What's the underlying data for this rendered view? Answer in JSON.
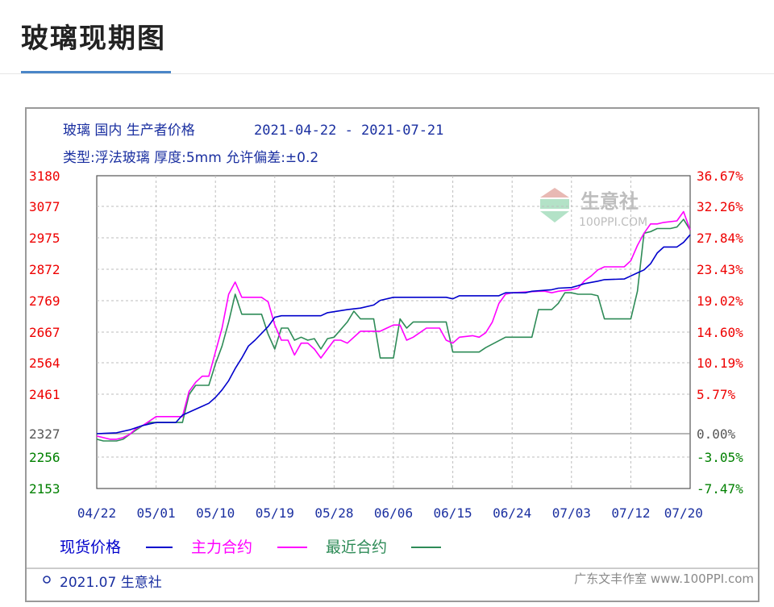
{
  "page": {
    "title": "玻璃现期图"
  },
  "chart_data": {
    "type": "line",
    "header": {
      "line1_prefix": "玻璃 国内 生产者价格",
      "date_range": "2021-04-22 - 2021-07-21",
      "line2": "类型:浮法玻璃 厚度:5mm 允许偏差:±0.2"
    },
    "watermark": {
      "brand": "生意社",
      "url": "100PPI.COM"
    },
    "x_ticks": [
      "04/22",
      "05/01",
      "05/10",
      "05/19",
      "05/28",
      "06/06",
      "06/15",
      "06/24",
      "07/03",
      "07/12",
      "07/20"
    ],
    "xlim": [
      "04/22",
      "07/21"
    ],
    "y_left": {
      "ticks": [
        3180,
        3077,
        2975,
        2872,
        2769,
        2667,
        2564,
        2461,
        2327,
        2256,
        2153
      ],
      "ylim": [
        2153,
        3180
      ],
      "base_value": 2327
    },
    "y_right": {
      "ticks": [
        "36.67%",
        "32.26%",
        "27.84%",
        "23.43%",
        "19.02%",
        "14.60%",
        "10.19%",
        "5.77%",
        "0.00%",
        "-3.05%",
        "-7.47%"
      ]
    },
    "series": [
      {
        "name": "现货价格",
        "color": "#0000cc",
        "points": [
          [
            "04/22",
            2327
          ],
          [
            "04/25",
            2330
          ],
          [
            "04/27",
            2340
          ],
          [
            "04/29",
            2355
          ],
          [
            "05/01",
            2365
          ],
          [
            "05/04",
            2365
          ],
          [
            "05/05",
            2390
          ],
          [
            "05/07",
            2410
          ],
          [
            "05/09",
            2430
          ],
          [
            "05/10",
            2450
          ],
          [
            "05/11",
            2475
          ],
          [
            "05/12",
            2505
          ],
          [
            "05/13",
            2545
          ],
          [
            "05/14",
            2580
          ],
          [
            "05/15",
            2620
          ],
          [
            "05/16",
            2640
          ],
          [
            "05/18",
            2685
          ],
          [
            "05/19",
            2715
          ],
          [
            "05/20",
            2720
          ],
          [
            "05/26",
            2720
          ],
          [
            "05/27",
            2730
          ],
          [
            "05/30",
            2740
          ],
          [
            "06/01",
            2745
          ],
          [
            "06/03",
            2755
          ],
          [
            "06/04",
            2770
          ],
          [
            "06/06",
            2780
          ],
          [
            "06/14",
            2780
          ],
          [
            "06/15",
            2775
          ],
          [
            "06/16",
            2785
          ],
          [
            "06/22",
            2785
          ],
          [
            "06/23",
            2795
          ],
          [
            "06/26",
            2795
          ],
          [
            "06/27",
            2800
          ],
          [
            "06/30",
            2805
          ],
          [
            "07/01",
            2810
          ],
          [
            "07/03",
            2812
          ],
          [
            "07/04",
            2818
          ],
          [
            "07/05",
            2825
          ],
          [
            "07/07",
            2833
          ],
          [
            "07/08",
            2838
          ],
          [
            "07/11",
            2840
          ],
          [
            "07/12",
            2850
          ],
          [
            "07/13",
            2860
          ],
          [
            "07/14",
            2870
          ],
          [
            "07/15",
            2890
          ],
          [
            "07/16",
            2925
          ],
          [
            "07/17",
            2945
          ],
          [
            "07/19",
            2945
          ],
          [
            "07/20",
            2960
          ],
          [
            "07/21",
            2985
          ]
        ]
      },
      {
        "name": "主力合约",
        "color": "#ff00ff",
        "points": [
          [
            "04/22",
            2320
          ],
          [
            "04/23",
            2315
          ],
          [
            "04/24",
            2310
          ],
          [
            "04/25",
            2310
          ],
          [
            "04/26",
            2315
          ],
          [
            "04/27",
            2325
          ],
          [
            "04/28",
            2345
          ],
          [
            "04/29",
            2355
          ],
          [
            "04/30",
            2370
          ],
          [
            "05/01",
            2385
          ],
          [
            "05/05",
            2385
          ],
          [
            "05/06",
            2470
          ],
          [
            "05/07",
            2500
          ],
          [
            "05/08",
            2520
          ],
          [
            "05/09",
            2520
          ],
          [
            "05/10",
            2600
          ],
          [
            "05/11",
            2680
          ],
          [
            "05/12",
            2790
          ],
          [
            "05/13",
            2830
          ],
          [
            "05/14",
            2780
          ],
          [
            "05/17",
            2780
          ],
          [
            "05/18",
            2765
          ],
          [
            "05/19",
            2690
          ],
          [
            "05/20",
            2640
          ],
          [
            "05/21",
            2640
          ],
          [
            "05/22",
            2590
          ],
          [
            "05/23",
            2630
          ],
          [
            "05/24",
            2630
          ],
          [
            "05/25",
            2610
          ],
          [
            "05/26",
            2580
          ],
          [
            "05/27",
            2610
          ],
          [
            "05/28",
            2640
          ],
          [
            "05/29",
            2640
          ],
          [
            "05/30",
            2630
          ],
          [
            "06/01",
            2670
          ],
          [
            "06/04",
            2670
          ],
          [
            "06/05",
            2680
          ],
          [
            "06/06",
            2690
          ],
          [
            "06/07",
            2690
          ],
          [
            "06/08",
            2640
          ],
          [
            "06/09",
            2650
          ],
          [
            "06/11",
            2680
          ],
          [
            "06/13",
            2680
          ],
          [
            "06/14",
            2640
          ],
          [
            "06/15",
            2630
          ],
          [
            "06/16",
            2650
          ],
          [
            "06/18",
            2655
          ],
          [
            "06/19",
            2650
          ],
          [
            "06/20",
            2665
          ],
          [
            "06/21",
            2700
          ],
          [
            "06/22",
            2760
          ],
          [
            "06/23",
            2790
          ],
          [
            "06/24",
            2795
          ],
          [
            "06/28",
            2800
          ],
          [
            "06/29",
            2800
          ],
          [
            "06/30",
            2795
          ],
          [
            "07/01",
            2800
          ],
          [
            "07/03",
            2805
          ],
          [
            "07/04",
            2810
          ],
          [
            "07/05",
            2835
          ],
          [
            "07/06",
            2850
          ],
          [
            "07/07",
            2870
          ],
          [
            "07/08",
            2880
          ],
          [
            "07/09",
            2880
          ],
          [
            "07/11",
            2880
          ],
          [
            "07/12",
            2900
          ],
          [
            "07/13",
            2950
          ],
          [
            "07/14",
            2990
          ],
          [
            "07/15",
            3020
          ],
          [
            "07/16",
            3020
          ],
          [
            "07/17",
            3025
          ],
          [
            "07/19",
            3030
          ],
          [
            "07/20",
            3060
          ],
          [
            "07/21",
            3000
          ]
        ]
      },
      {
        "name": "最近合约",
        "color": "#2e8b57",
        "points": [
          [
            "04/22",
            2310
          ],
          [
            "04/23",
            2305
          ],
          [
            "04/24",
            2305
          ],
          [
            "04/25",
            2305
          ],
          [
            "04/26",
            2310
          ],
          [
            "04/27",
            2325
          ],
          [
            "04/28",
            2340
          ],
          [
            "04/29",
            2355
          ],
          [
            "04/30",
            2365
          ],
          [
            "05/01",
            2365
          ],
          [
            "05/05",
            2365
          ],
          [
            "05/06",
            2460
          ],
          [
            "05/07",
            2490
          ],
          [
            "05/08",
            2490
          ],
          [
            "05/09",
            2490
          ],
          [
            "05/10",
            2560
          ],
          [
            "05/11",
            2620
          ],
          [
            "05/12",
            2700
          ],
          [
            "05/13",
            2790
          ],
          [
            "05/14",
            2725
          ],
          [
            "05/15",
            2725
          ],
          [
            "05/17",
            2725
          ],
          [
            "05/18",
            2660
          ],
          [
            "05/19",
            2610
          ],
          [
            "05/20",
            2680
          ],
          [
            "05/21",
            2680
          ],
          [
            "05/22",
            2640
          ],
          [
            "05/23",
            2650
          ],
          [
            "05/24",
            2640
          ],
          [
            "05/25",
            2645
          ],
          [
            "05/26",
            2610
          ],
          [
            "05/27",
            2645
          ],
          [
            "05/28",
            2650
          ],
          [
            "05/30",
            2700
          ],
          [
            "05/31",
            2735
          ],
          [
            "06/01",
            2710
          ],
          [
            "06/02",
            2710
          ],
          [
            "06/03",
            2710
          ],
          [
            "06/04",
            2580
          ],
          [
            "06/06",
            2580
          ],
          [
            "06/07",
            2710
          ],
          [
            "06/08",
            2680
          ],
          [
            "06/09",
            2700
          ],
          [
            "06/10",
            2700
          ],
          [
            "06/14",
            2700
          ],
          [
            "06/15",
            2600
          ],
          [
            "06/19",
            2600
          ],
          [
            "06/20",
            2615
          ],
          [
            "06/23",
            2650
          ],
          [
            "06/24",
            2650
          ],
          [
            "06/27",
            2650
          ],
          [
            "06/28",
            2740
          ],
          [
            "06/30",
            2740
          ],
          [
            "07/01",
            2760
          ],
          [
            "07/02",
            2795
          ],
          [
            "07/03",
            2795
          ],
          [
            "07/04",
            2790
          ],
          [
            "07/06",
            2790
          ],
          [
            "07/07",
            2785
          ],
          [
            "07/08",
            2710
          ],
          [
            "07/12",
            2710
          ],
          [
            "07/13",
            2800
          ],
          [
            "07/14",
            2990
          ],
          [
            "07/15",
            2995
          ],
          [
            "07/16",
            3005
          ],
          [
            "07/18",
            3005
          ],
          [
            "07/19",
            3010
          ],
          [
            "07/20",
            3035
          ],
          [
            "07/21",
            3000
          ]
        ]
      }
    ],
    "legend": [
      {
        "label": "现货价格",
        "color": "#0000cc"
      },
      {
        "label": "主力合约",
        "color": "#ff00ff"
      },
      {
        "label": "最近合约",
        "color": "#2e8b57"
      }
    ],
    "footer": "2021.07 生意社",
    "credit": "广东文丰作室 www.100PPI.com",
    "colors": {
      "left_tick": "#ee0000",
      "right_tick": "#ee0000",
      "neg_tick": "#008000",
      "base_tick": "#555555",
      "grid": "#bdbdbd",
      "header_text": "#1a2fa0",
      "legend_text_blue": "#0000cc",
      "legend_text_pink": "#ff00ff",
      "legend_text_green": "#2e8b57"
    },
    "grid": true
  }
}
